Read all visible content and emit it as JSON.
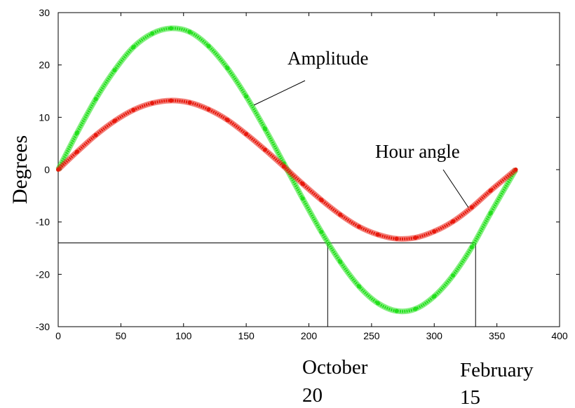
{
  "chart_data": {
    "type": "line",
    "title": "",
    "xlabel": "",
    "ylabel": "Degrees",
    "xlim": [
      0,
      400
    ],
    "ylim": [
      -30,
      30
    ],
    "x_ticks": [
      "0",
      "50",
      "100",
      "150",
      "200",
      "250",
      "300",
      "350",
      "400"
    ],
    "y_ticks": [
      "30",
      "20",
      "10",
      "0",
      "-10",
      "-20",
      "-30"
    ],
    "series": [
      {
        "name": "Amplitude",
        "color": "#22e01c",
        "marker": "asterisk",
        "x": [
          0,
          15,
          30,
          45,
          60,
          75,
          90,
          105,
          120,
          135,
          150,
          165,
          180,
          195,
          210,
          225,
          240,
          255,
          270,
          285,
          300,
          315,
          330,
          345,
          365
        ],
        "values": [
          0,
          7,
          13.5,
          19,
          23.4,
          26,
          27,
          26.3,
          23.6,
          19.4,
          14,
          7.8,
          1.2,
          -5.5,
          -11.9,
          -17.6,
          -22.3,
          -25.5,
          -27,
          -26.6,
          -24.2,
          -20.2,
          -14.8,
          -8.3,
          0
        ]
      },
      {
        "name": "Hour angle",
        "color": "#e8180c",
        "marker": "asterisk",
        "x": [
          0,
          15,
          30,
          45,
          60,
          75,
          90,
          105,
          120,
          135,
          150,
          165,
          180,
          195,
          210,
          225,
          240,
          255,
          270,
          285,
          300,
          315,
          330,
          345,
          365
        ],
        "values": [
          0,
          3.4,
          6.6,
          9.3,
          11.4,
          12.7,
          13.2,
          12.8,
          11.5,
          9.5,
          6.8,
          3.8,
          0.6,
          -2.7,
          -5.8,
          -8.6,
          -10.9,
          -12.4,
          -13.2,
          -13,
          -11.8,
          -9.9,
          -7.2,
          -4,
          0
        ]
      }
    ],
    "reference_lines": {
      "y": -14,
      "x1": 215,
      "x2": 333
    },
    "annotations": [
      {
        "label": "Amplitude",
        "x": 270,
        "y": 21
      },
      {
        "label": "Hour angle",
        "x": 287,
        "y": 3.5
      }
    ],
    "bottom_labels": [
      {
        "line1": "October",
        "line2": "20",
        "x": 215
      },
      {
        "line1": "February",
        "line2": "15",
        "x": 333
      }
    ]
  }
}
